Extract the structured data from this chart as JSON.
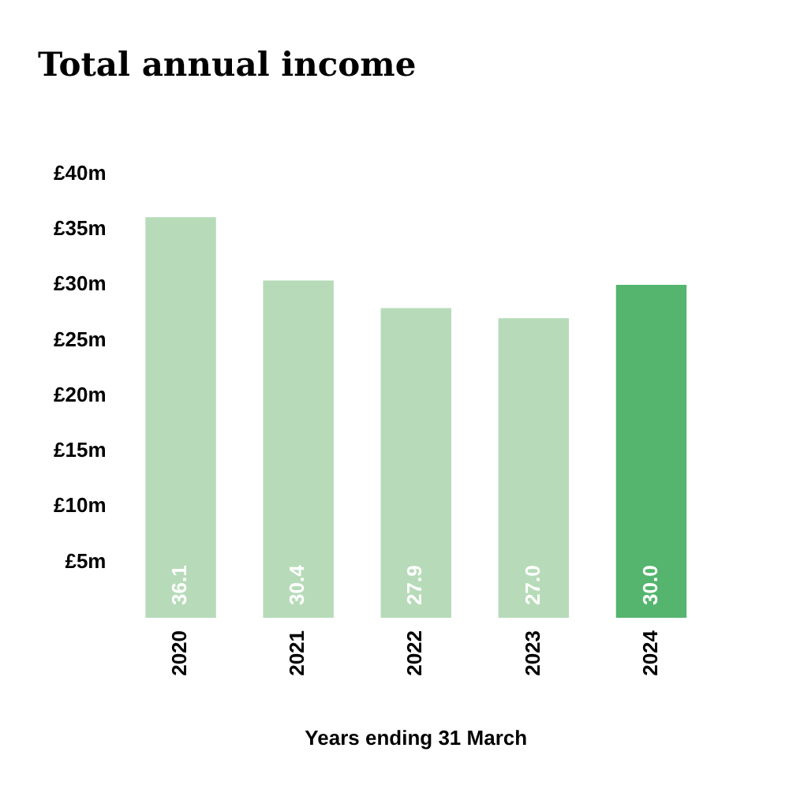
{
  "chart_data": {
    "type": "bar",
    "title": "Total annual income",
    "xlabel": "Years ending 31 March",
    "categories": [
      "2020",
      "2021",
      "2022",
      "2023",
      "2024"
    ],
    "values": [
      36.1,
      30.4,
      27.9,
      27.0,
      30.0
    ],
    "colors": [
      "#b7dbb9",
      "#b7dbb9",
      "#b7dbb9",
      "#b7dbb9",
      "#55b56e"
    ],
    "ylim": [
      0,
      40
    ],
    "yticks": [
      {
        "value": 5,
        "label": "£5m"
      },
      {
        "value": 10,
        "label": "£10m"
      },
      {
        "value": 15,
        "label": "£15m"
      },
      {
        "value": 20,
        "label": "£20m"
      },
      {
        "value": 25,
        "label": "£25m"
      },
      {
        "value": 30,
        "label": "£30m"
      },
      {
        "value": 35,
        "label": "£35m"
      },
      {
        "value": 40,
        "label": "£40m"
      }
    ],
    "value_labels": [
      "36.1",
      "30.4",
      "27.9",
      "27.0",
      "30.0"
    ],
    "grid": false,
    "legend": false
  }
}
